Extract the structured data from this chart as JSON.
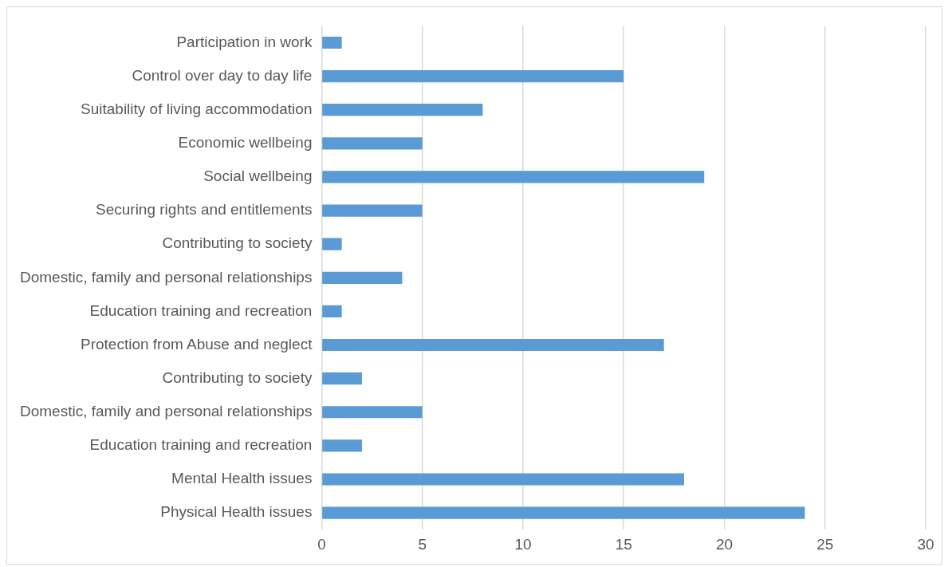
{
  "chart_data": {
    "type": "bar",
    "orientation": "horizontal",
    "categories": [
      "Participation in work",
      "Control over day to day life",
      "Suitability of living accommodation",
      "Economic wellbeing",
      "Social wellbeing",
      "Securing rights and entitlements",
      "Contributing to society",
      "Domestic, family and personal relationships",
      "Education training and recreation",
      "Protection from Abuse and neglect",
      "Contributing to society",
      "Domestic, family and personal relationships",
      "Education training and recreation",
      "Mental Health issues",
      "Physical Health issues"
    ],
    "values": [
      1,
      15,
      8,
      5,
      19,
      5,
      1,
      4,
      1,
      17,
      2,
      5,
      2,
      18,
      24
    ],
    "color": "#5b9bd5",
    "xlim": [
      0,
      30
    ],
    "xticks": [
      0,
      5,
      10,
      15,
      20,
      25,
      30
    ],
    "grid": "x",
    "legend": false
  }
}
